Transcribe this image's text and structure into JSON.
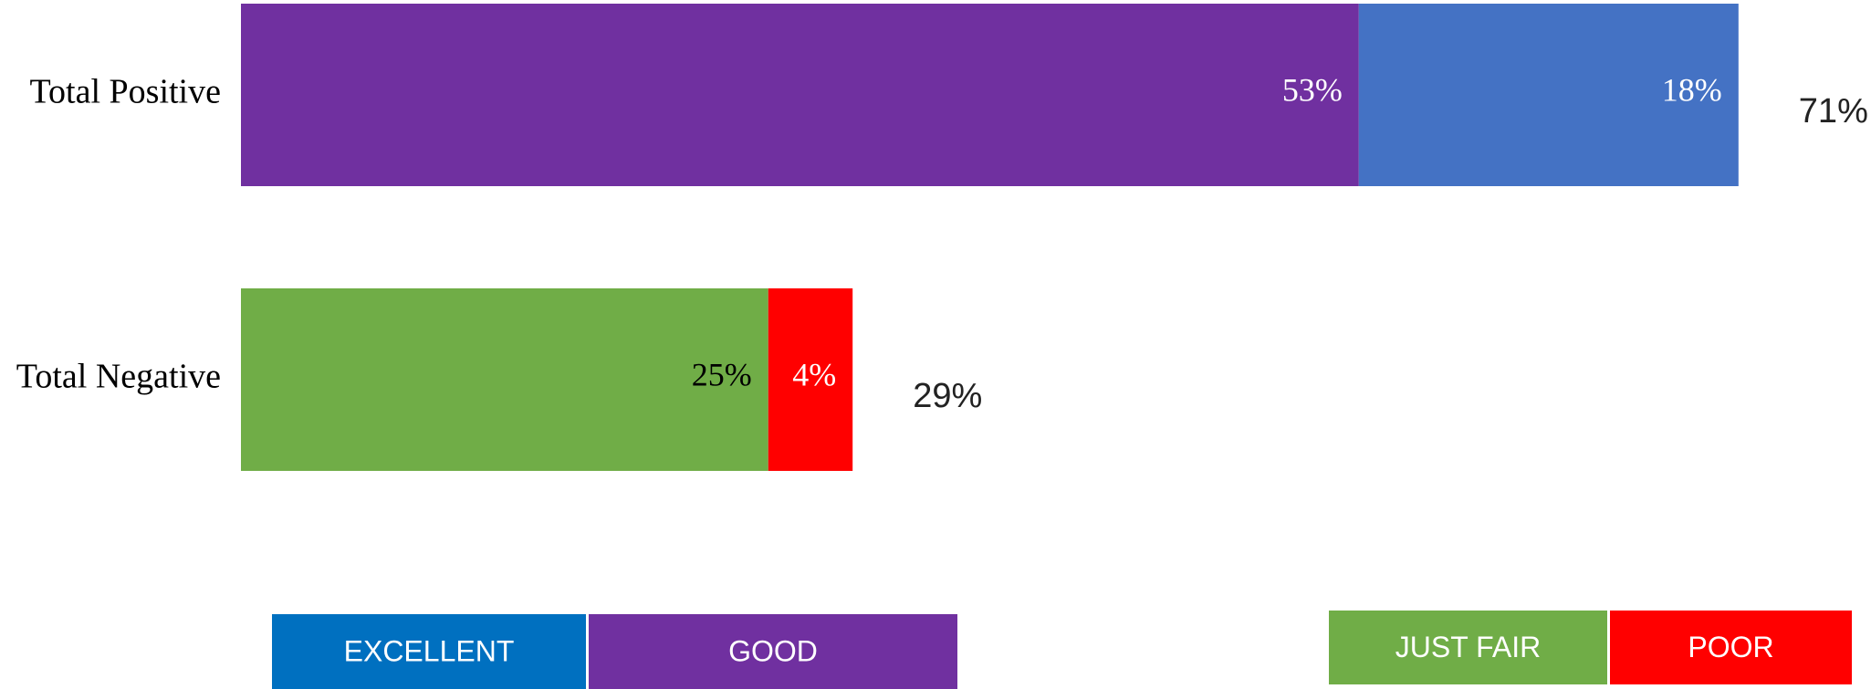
{
  "chart_data": {
    "type": "stacked_barh",
    "categories": [
      "Total Positive",
      "Total Negative"
    ],
    "series": [
      {
        "name": "EXCELLENT",
        "color": "#4472c4",
        "legend_color": "#0070c0",
        "label_color": "#ffffff",
        "values": [
          18,
          null
        ],
        "value_labels": [
          "18%",
          null
        ]
      },
      {
        "name": "GOOD",
        "color": "#7030a0",
        "label_color": "#ffffff",
        "values": [
          53,
          null
        ],
        "value_labels": [
          "53%",
          null
        ]
      },
      {
        "name": "JUST FAIR",
        "color": "#70ad47",
        "label_color": "#000000",
        "values": [
          null,
          25
        ],
        "value_labels": [
          null,
          "25%"
        ]
      },
      {
        "name": "POOR",
        "color": "#ff0000",
        "label_color": "#ffffff",
        "values": [
          null,
          4
        ],
        "value_labels": [
          null,
          "4%"
        ]
      }
    ],
    "totals": [
      71,
      29
    ],
    "total_labels": [
      "71%",
      "29%"
    ]
  }
}
